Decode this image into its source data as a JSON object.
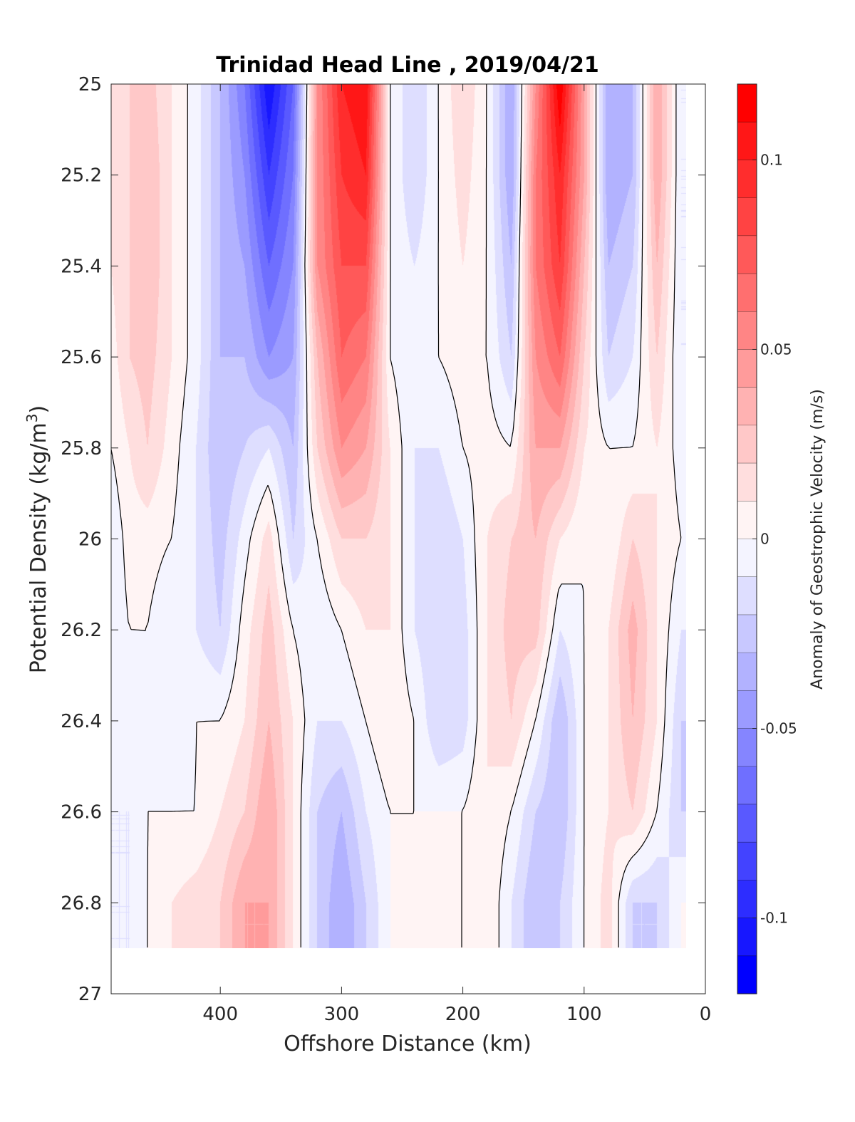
{
  "chart_data": {
    "type": "heatmap",
    "title": "Trinidad Head Line , 2019/04/21",
    "xlabel": "Offshore Distance (km)",
    "ylabel": "Potential Density (kg/m",
    "ylabel_superscript": "3",
    "ylabel_suffix": ")",
    "colorbar_label": "Anomaly of Geostrophic Velocity (m/s)",
    "x_axis": {
      "lim": [
        490,
        0
      ],
      "reversed": true,
      "ticks": [
        400,
        300,
        200,
        100,
        0
      ],
      "tick_labels": [
        "400",
        "300",
        "200",
        "100",
        "0"
      ]
    },
    "y_axis": {
      "lim": [
        25,
        27
      ],
      "reversed": true,
      "ticks": [
        25,
        25.2,
        25.4,
        25.6,
        25.8,
        26,
        26.2,
        26.4,
        26.6,
        26.8,
        27
      ],
      "tick_labels": [
        "25",
        "25.2",
        "25.4",
        "25.6",
        "25.8",
        "26",
        "26.2",
        "26.4",
        "26.6",
        "26.8",
        "27"
      ]
    },
    "colorbar": {
      "lim": [
        -0.12,
        0.12
      ],
      "levels": 24,
      "ticks": [
        0.1,
        0.05,
        0,
        -0.05,
        -0.1
      ],
      "tick_labels": [
        "0.1",
        "0.05",
        "0",
        "-0.05",
        "-0.1"
      ],
      "colormap": "blue-white-red",
      "min_color": "#0000ff",
      "max_color": "#ff0000"
    },
    "data_extent": {
      "x": [
        490,
        16
      ],
      "y": [
        25,
        26.9
      ]
    },
    "field": {
      "x": [
        490,
        475,
        460,
        440,
        420,
        400,
        380,
        360,
        340,
        320,
        300,
        280,
        260,
        240,
        220,
        200,
        180,
        160,
        140,
        120,
        100,
        80,
        60,
        40,
        20
      ],
      "y": [
        25.0,
        25.2,
        25.4,
        25.6,
        25.8,
        26.0,
        26.2,
        26.4,
        26.6,
        26.8,
        26.9
      ],
      "values": [
        [
          0.015,
          0.02,
          0.025,
          0.01,
          -0.005,
          -0.03,
          -0.06,
          -0.11,
          -0.07,
          0.05,
          0.1,
          0.11,
          0.0,
          -0.02,
          0.0,
          0.02,
          0.0,
          -0.04,
          0.05,
          0.12,
          0.04,
          -0.04,
          -0.03,
          0.04,
          -0.01
        ],
        [
          0.015,
          0.02,
          0.03,
          0.01,
          -0.005,
          -0.03,
          -0.05,
          -0.09,
          -0.06,
          0.05,
          0.09,
          0.1,
          0.0,
          -0.02,
          0.0,
          0.015,
          0.0,
          -0.04,
          0.06,
          0.1,
          0.04,
          -0.04,
          -0.03,
          0.04,
          -0.01
        ],
        [
          0.01,
          0.02,
          0.03,
          0.01,
          -0.005,
          -0.03,
          -0.04,
          -0.07,
          -0.05,
          0.05,
          0.08,
          0.08,
          0.0,
          -0.01,
          0.0,
          0.01,
          0.0,
          -0.03,
          0.06,
          0.09,
          0.03,
          -0.03,
          -0.02,
          0.03,
          -0.01
        ],
        [
          0.005,
          0.02,
          0.025,
          0.01,
          -0.005,
          -0.03,
          -0.03,
          -0.05,
          -0.04,
          0.03,
          0.07,
          0.06,
          0.0,
          -0.01,
          0.0,
          0.005,
          0.0,
          -0.02,
          0.05,
          0.07,
          0.02,
          -0.02,
          -0.01,
          0.02,
          -0.01
        ],
        [
          0.0,
          0.01,
          0.02,
          0.005,
          -0.01,
          -0.03,
          -0.02,
          -0.01,
          -0.03,
          0.02,
          0.05,
          0.04,
          0.01,
          -0.01,
          -0.01,
          0.0,
          0.005,
          0.0,
          0.04,
          0.04,
          0.01,
          0.0,
          0.0,
          0.01,
          -0.005
        ],
        [
          -0.01,
          0.005,
          0.005,
          0.0,
          -0.01,
          -0.025,
          -0.005,
          0.015,
          -0.02,
          0.0,
          0.02,
          0.02,
          0.01,
          -0.01,
          -0.02,
          -0.01,
          0.01,
          0.02,
          0.03,
          0.01,
          0.0,
          0.0,
          0.02,
          0.01,
          0.0
        ],
        [
          -0.01,
          0.0,
          0.0,
          -0.01,
          -0.01,
          -0.02,
          0.005,
          0.025,
          0.0,
          -0.01,
          0.0,
          0.01,
          0.01,
          -0.01,
          -0.02,
          -0.015,
          0.01,
          0.025,
          0.025,
          -0.01,
          0.0,
          0.01,
          0.035,
          0.01,
          -0.01
        ],
        [
          -0.01,
          -0.005,
          0.0,
          -0.01,
          0.0,
          0.0,
          0.01,
          0.03,
          0.01,
          -0.01,
          -0.01,
          0.0,
          0.01,
          0.0,
          -0.02,
          -0.015,
          0.01,
          0.02,
          0.0,
          -0.03,
          0.0,
          0.01,
          0.03,
          0.01,
          -0.02
        ],
        [
          -0.01,
          -0.01,
          0.0,
          0.0,
          0.0,
          0.01,
          0.02,
          0.04,
          0.01,
          -0.02,
          -0.03,
          -0.01,
          0.0,
          0.0,
          0.0,
          0.0,
          0.01,
          0.0,
          -0.02,
          -0.03,
          0.0,
          0.01,
          0.02,
          0.0,
          -0.02
        ],
        [
          -0.01,
          -0.01,
          0.0,
          0.01,
          0.015,
          0.02,
          0.04,
          0.04,
          0.01,
          -0.02,
          -0.04,
          -0.02,
          0.0,
          0.0,
          0.0,
          0.0,
          0.01,
          -0.01,
          -0.03,
          -0.02,
          0.0,
          0.015,
          -0.02,
          -0.02,
          0.0
        ],
        [
          -0.01,
          -0.01,
          0.0,
          0.01,
          0.015,
          0.02,
          0.04,
          0.04,
          0.01,
          -0.02,
          -0.04,
          -0.02,
          0.0,
          0.0,
          0.0,
          0.0,
          0.01,
          -0.01,
          -0.03,
          -0.02,
          0.0,
          0.015,
          -0.02,
          -0.02,
          0.0
        ]
      ]
    },
    "contour_levels": [
      0
    ]
  }
}
